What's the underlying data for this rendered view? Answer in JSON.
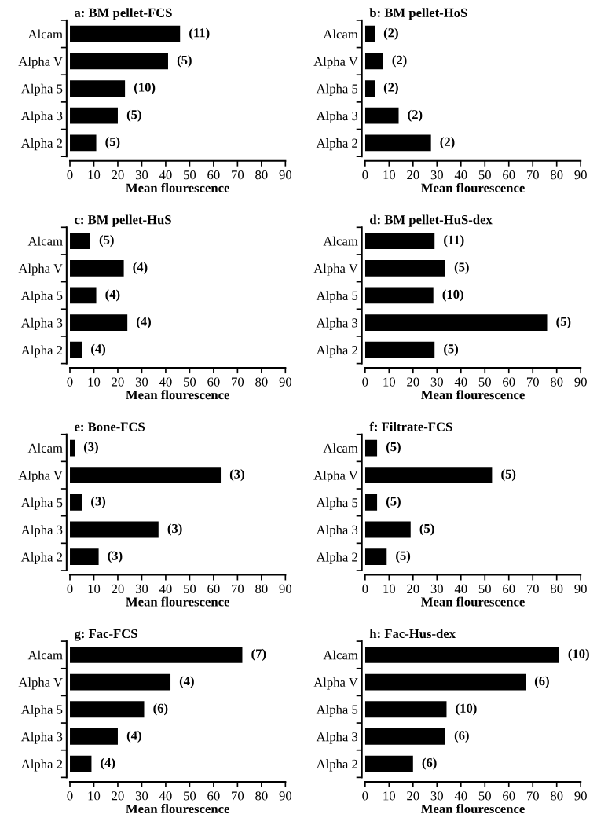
{
  "chart_data": [
    {
      "type": "bar",
      "orientation": "horizontal",
      "title": "a: BM pellet-FCS",
      "xlabel": "Mean flourescence",
      "categories": [
        "Alcam",
        "Alpha V",
        "Alpha 5",
        "Alpha 3",
        "Alpha 2"
      ],
      "values": [
        46,
        41,
        23,
        20,
        11
      ],
      "color": "#000000",
      "xlim": [
        0,
        90
      ],
      "xticks": [
        0,
        10,
        20,
        30,
        40,
        50,
        60,
        70,
        80,
        90
      ],
      "annotations": [
        {
          "text": "(11)",
          "x": 46,
          "y": "Alcam"
        },
        {
          "text": "(5)",
          "x": 41,
          "y": "Alpha V"
        },
        {
          "text": "(10)",
          "x": 23,
          "y": "Alpha 5"
        },
        {
          "text": "(5)",
          "x": 20,
          "y": "Alpha 3"
        },
        {
          "text": "(5)",
          "x": 11,
          "y": "Alpha 2"
        }
      ]
    },
    {
      "type": "bar",
      "orientation": "horizontal",
      "title": "b: BM pellet-HoS",
      "xlabel": "Mean flourescence",
      "categories": [
        "Alcam",
        "Alpha V",
        "Alpha 5",
        "Alpha 3",
        "Alpha 2"
      ],
      "values": [
        4,
        7.5,
        4,
        14,
        27.5
      ],
      "color": "#000000",
      "xlim": [
        0,
        90
      ],
      "xticks": [
        0,
        10,
        20,
        30,
        40,
        50,
        60,
        70,
        80,
        90
      ],
      "annotations": [
        {
          "text": "(2)",
          "x": 4,
          "y": "Alcam"
        },
        {
          "text": "(2)",
          "x": 7.5,
          "y": "Alpha V"
        },
        {
          "text": "(2)",
          "x": 4,
          "y": "Alpha 5"
        },
        {
          "text": "(2)",
          "x": 14,
          "y": "Alpha 3"
        },
        {
          "text": "(2)",
          "x": 27.5,
          "y": "Alpha 2"
        }
      ]
    },
    {
      "type": "bar",
      "orientation": "horizontal",
      "title": "c: BM pellet-HuS",
      "xlabel": "Mean flourescence",
      "categories": [
        "Alcam",
        "Alpha V",
        "Alpha 5",
        "Alpha 3",
        "Alpha 2"
      ],
      "values": [
        8.5,
        22.5,
        11,
        24,
        5
      ],
      "color": "#000000",
      "xlim": [
        0,
        90
      ],
      "xticks": [
        0,
        10,
        20,
        30,
        40,
        50,
        60,
        70,
        80,
        90
      ],
      "annotations": [
        {
          "text": "(5)",
          "x": 8.5,
          "y": "Alcam"
        },
        {
          "text": "(4)",
          "x": 22.5,
          "y": "Alpha V"
        },
        {
          "text": "(4)",
          "x": 11,
          "y": "Alpha 5"
        },
        {
          "text": "(4)",
          "x": 24,
          "y": "Alpha 3"
        },
        {
          "text": "(4)",
          "x": 5,
          "y": "Alpha 2"
        }
      ]
    },
    {
      "type": "bar",
      "orientation": "horizontal",
      "title": "d: BM pellet-HuS-dex",
      "xlabel": "Mean flourescence",
      "categories": [
        "Alcam",
        "Alpha V",
        "Alpha 5",
        "Alpha 3",
        "Alpha 2"
      ],
      "values": [
        29,
        33.5,
        28.5,
        76,
        29
      ],
      "color": "#000000",
      "xlim": [
        0,
        90
      ],
      "xticks": [
        0,
        10,
        20,
        30,
        40,
        50,
        60,
        70,
        80,
        90
      ],
      "annotations": [
        {
          "text": "(11)",
          "x": 29,
          "y": "Alcam"
        },
        {
          "text": "(5)",
          "x": 33.5,
          "y": "Alpha V"
        },
        {
          "text": "(10)",
          "x": 28.5,
          "y": "Alpha 5"
        },
        {
          "text": "(5)",
          "x": 76,
          "y": "Alpha 3"
        },
        {
          "text": "(5)",
          "x": 29,
          "y": "Alpha 2"
        }
      ]
    },
    {
      "type": "bar",
      "orientation": "horizontal",
      "title": "e: Bone-FCS",
      "xlabel": "Mean flourescence",
      "categories": [
        "Alcam",
        "Alpha V",
        "Alpha 5",
        "Alpha 3",
        "Alpha 2"
      ],
      "values": [
        2,
        63,
        5,
        37,
        12
      ],
      "color": "#000000",
      "xlim": [
        0,
        90
      ],
      "xticks": [
        0,
        10,
        20,
        30,
        40,
        50,
        60,
        70,
        80,
        90
      ],
      "annotations": [
        {
          "text": "(3)",
          "x": 2,
          "y": "Alcam"
        },
        {
          "text": "(3)",
          "x": 63,
          "y": "Alpha V"
        },
        {
          "text": "(3)",
          "x": 5,
          "y": "Alpha 5"
        },
        {
          "text": "(3)",
          "x": 37,
          "y": "Alpha 3"
        },
        {
          "text": "(3)",
          "x": 12,
          "y": "Alpha 2"
        }
      ]
    },
    {
      "type": "bar",
      "orientation": "horizontal",
      "title": "f: Filtrate-FCS",
      "xlabel": "Mean flourescence",
      "categories": [
        "Alcam",
        "Alpha V",
        "Alpha 5",
        "Alpha 3",
        "Alpha 2"
      ],
      "values": [
        5,
        53,
        5,
        19,
        9
      ],
      "color": "#000000",
      "xlim": [
        0,
        90
      ],
      "xticks": [
        0,
        10,
        20,
        30,
        40,
        50,
        60,
        70,
        80,
        90
      ],
      "annotations": [
        {
          "text": "(5)",
          "x": 5,
          "y": "Alcam"
        },
        {
          "text": "(5)",
          "x": 53,
          "y": "Alpha V"
        },
        {
          "text": "(5)",
          "x": 5,
          "y": "Alpha 5"
        },
        {
          "text": "(5)",
          "x": 19,
          "y": "Alpha 3"
        },
        {
          "text": "(5)",
          "x": 9,
          "y": "Alpha 2"
        }
      ]
    },
    {
      "type": "bar",
      "orientation": "horizontal",
      "title": "g: Fac-FCS",
      "xlabel": "Mean flourescence",
      "categories": [
        "Alcam",
        "Alpha V",
        "Alpha 5",
        "Alpha 3",
        "Alpha 2"
      ],
      "values": [
        72,
        42,
        31,
        20,
        9
      ],
      "color": "#000000",
      "xlim": [
        0,
        90
      ],
      "xticks": [
        0,
        10,
        20,
        30,
        40,
        50,
        60,
        70,
        80,
        90
      ],
      "annotations": [
        {
          "text": "(7)",
          "x": 72,
          "y": "Alcam"
        },
        {
          "text": "(4)",
          "x": 42,
          "y": "Alpha V"
        },
        {
          "text": "(6)",
          "x": 31,
          "y": "Alpha 5"
        },
        {
          "text": "(4)",
          "x": 20,
          "y": "Alpha 3"
        },
        {
          "text": "(4)",
          "x": 9,
          "y": "Alpha 2"
        }
      ]
    },
    {
      "type": "bar",
      "orientation": "horizontal",
      "title": "h: Fac-Hus-dex",
      "xlabel": "Mean flourescence",
      "categories": [
        "Alcam",
        "Alpha V",
        "Alpha 5",
        "Alpha 3",
        "Alpha 2"
      ],
      "values": [
        81,
        67,
        34,
        33.5,
        20
      ],
      "color": "#000000",
      "xlim": [
        0,
        90
      ],
      "xticks": [
        0,
        10,
        20,
        30,
        40,
        50,
        60,
        70,
        80,
        90
      ],
      "annotations": [
        {
          "text": "(10)",
          "x": 81,
          "y": "Alcam"
        },
        {
          "text": "(6)",
          "x": 67,
          "y": "Alpha V"
        },
        {
          "text": "(10)",
          "x": 34,
          "y": "Alpha 5"
        },
        {
          "text": "(6)",
          "x": 33.5,
          "y": "Alpha 3"
        },
        {
          "text": "(6)",
          "x": 20,
          "y": "Alpha 2"
        }
      ]
    }
  ]
}
